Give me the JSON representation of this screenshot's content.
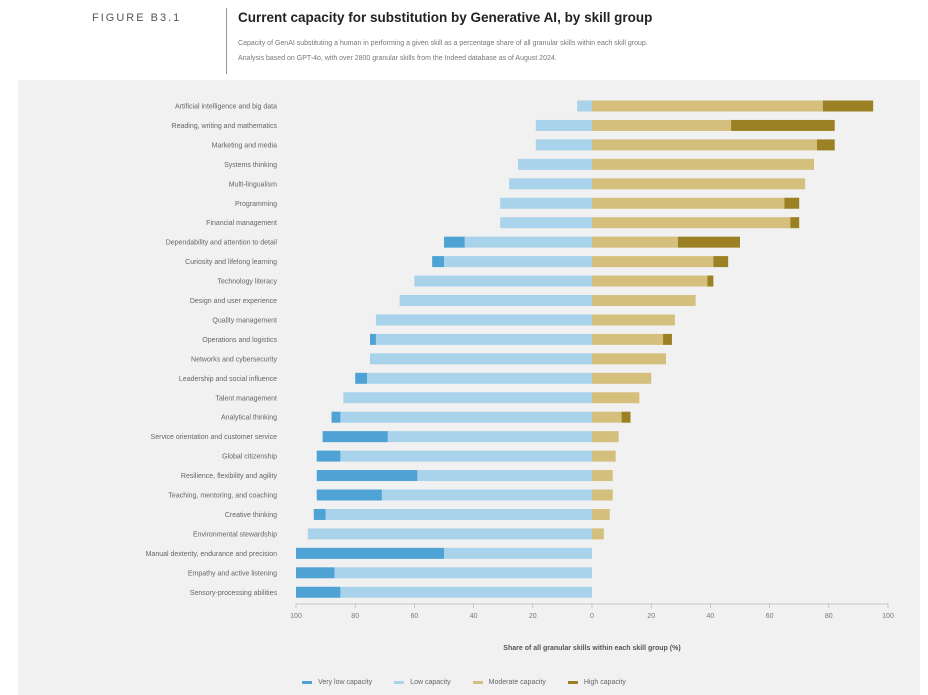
{
  "header": {
    "figure_label": "FIGURE B3.1",
    "title": "Current capacity for substitution by Generative AI, by skill group",
    "subtitle_line1": "Capacity of GenAI substituting a human in performing a given skill as a percentage share of all granular skills within each skill group.",
    "subtitle_line2": "Analysis based on GPT-4o, with over 2800 granular skills from the Indeed database as of August 2024."
  },
  "colors": {
    "very_low": "#4fa3d4",
    "low": "#a9d3ea",
    "moderate": "#d4bf7c",
    "high": "#9c8024",
    "panel": "#f1f1f1",
    "axis": "#bbbbbb"
  },
  "chart_data": {
    "type": "bar",
    "orientation": "horizontal-diverging",
    "xlabel": "Share of all granular skills within each skill group (%)",
    "xlim": [
      -100,
      100
    ],
    "xticks": [
      -100,
      -80,
      -60,
      -40,
      -20,
      0,
      20,
      40,
      60,
      80,
      100
    ],
    "xtick_labels": [
      "100",
      "80",
      "60",
      "40",
      "20",
      "0",
      "20",
      "40",
      "60",
      "80",
      "100"
    ],
    "legend_position": "bottom",
    "categories": [
      "Artificial intelligence and big data",
      "Reading, writing and mathematics",
      "Marketing and media",
      "Systems thinking",
      "Multi-lingualism",
      "Programming",
      "Financial management",
      "Dependability and attention to detail",
      "Curiosity and lifelong learning",
      "Technology literacy",
      "Design and user experience",
      "Quality management",
      "Operations and logistics",
      "Networks and cybersecurity",
      "Leadership and social influence",
      "Talent management",
      "Analytical thinking",
      "Service orientation and customer service",
      "Global citizenship",
      "Resilience, flexibility and agility",
      "Teaching, mentoring, and coaching",
      "Creative thinking",
      "Environmental stewardship",
      "Manual dexterity, endurance and precision",
      "Empathy and active listening",
      "Sensory-processing abilities"
    ],
    "series": [
      {
        "name": "Very low capacity",
        "side": "left",
        "values": [
          0,
          0,
          0,
          0,
          0,
          0,
          0,
          7,
          4,
          0,
          0,
          0,
          2,
          0,
          4,
          0,
          3,
          22,
          8,
          34,
          22,
          4,
          0,
          50,
          13,
          15
        ]
      },
      {
        "name": "Low capacity",
        "side": "left",
        "values": [
          5,
          19,
          19,
          25,
          28,
          31,
          31,
          43,
          50,
          60,
          65,
          73,
          73,
          75,
          76,
          84,
          85,
          69,
          85,
          59,
          71,
          90,
          96,
          50,
          87,
          85
        ]
      },
      {
        "name": "Moderate capacity",
        "side": "right",
        "values": [
          78,
          47,
          76,
          75,
          72,
          65,
          67,
          29,
          41,
          39,
          35,
          28,
          24,
          25,
          20,
          16,
          10,
          9,
          8,
          7,
          7,
          6,
          4,
          0,
          0,
          0
        ]
      },
      {
        "name": "High capacity",
        "side": "right",
        "values": [
          17,
          35,
          6,
          0,
          0,
          5,
          3,
          21,
          5,
          2,
          0,
          0,
          3,
          0,
          0,
          0,
          3,
          0,
          0,
          0,
          0,
          0,
          0,
          0,
          0,
          0
        ]
      }
    ]
  }
}
